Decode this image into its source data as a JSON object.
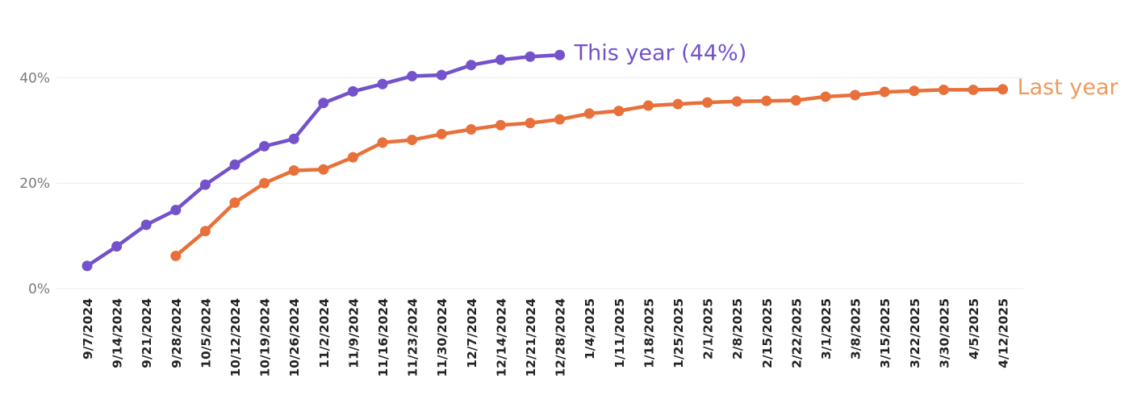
{
  "chart_data": {
    "type": "line",
    "title": "",
    "xlabel": "",
    "ylabel": "",
    "ylim": [
      0,
      44
    ],
    "y_ticks": [
      {
        "value": 0,
        "label": "0%"
      },
      {
        "value": 20,
        "label": "20%"
      },
      {
        "value": 40,
        "label": "40%"
      }
    ],
    "grid": true,
    "legend": "inline-right-of-lines",
    "categories": [
      "9/7/2024",
      "9/14/2024",
      "9/21/2024",
      "9/28/2024",
      "10/5/2024",
      "10/12/2024",
      "10/19/2024",
      "10/26/2024",
      "11/2/2024",
      "11/9/2024",
      "11/16/2024",
      "11/23/2024",
      "11/30/2024",
      "12/7/2024",
      "12/14/2024",
      "12/21/2024",
      "12/28/2024",
      "1/4/2025",
      "1/11/2025",
      "1/18/2025",
      "1/25/2025",
      "2/1/2025",
      "2/8/2025",
      "2/15/2025",
      "2/22/2025",
      "3/1/2025",
      "3/8/2025",
      "3/15/2025",
      "3/22/2025",
      "3/30/2025",
      "4/5/2025",
      "4/12/2025"
    ],
    "series": [
      {
        "name": "This year (44%)",
        "color": "#7352cc",
        "values": [
          4.3,
          8.0,
          12.1,
          14.9,
          19.7,
          23.5,
          27.0,
          28.4,
          35.2,
          37.4,
          38.8,
          40.3,
          40.5,
          42.4,
          43.4,
          44.0,
          44.3,
          null,
          null,
          null,
          null,
          null,
          null,
          null,
          null,
          null,
          null,
          null,
          null,
          null,
          null,
          null
        ]
      },
      {
        "name": "Last year",
        "color": "#e8703a",
        "label_color": "#ef9a5b",
        "values": [
          null,
          null,
          null,
          6.2,
          10.9,
          16.3,
          20.0,
          22.4,
          22.6,
          24.9,
          27.7,
          28.2,
          29.3,
          30.2,
          31.0,
          31.4,
          32.1,
          33.2,
          33.7,
          34.7,
          35.0,
          35.3,
          35.5,
          35.6,
          35.7,
          36.4,
          36.7,
          37.3,
          37.5,
          37.7,
          37.7,
          37.8
        ]
      }
    ]
  }
}
